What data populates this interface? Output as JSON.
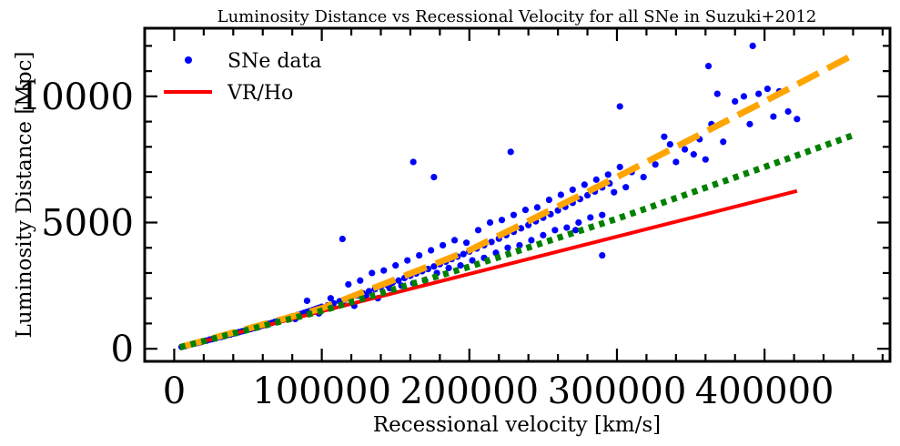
{
  "chart_data": {
    "type": "scatter",
    "title": "Luminosity Distance vs Recessional Velocity for all SNe in Suzuki+2012",
    "xlabel": "Recessional velocity [km/s]",
    "ylabel": "Luminosity Distance [Mpc]",
    "xlim": [
      -20000,
      485000
    ],
    "ylim": [
      -500,
      12700
    ],
    "xticks": [
      0,
      100000,
      200000,
      300000,
      400000
    ],
    "xtick_labels": [
      "0",
      "100000",
      "200000",
      "300000",
      "400000"
    ],
    "yticks": [
      0,
      5000,
      10000
    ],
    "ytick_labels": [
      "0",
      "5000",
      "10000"
    ],
    "grid": false,
    "legend_position": "top-left",
    "legend": [
      {
        "label": "SNe data",
        "kind": "marker",
        "color": "#0000ff"
      },
      {
        "label": "VR/Ho",
        "kind": "line",
        "color": "#ff0000"
      }
    ],
    "series": [
      {
        "name": "SNe data",
        "kind": "scatter",
        "color": "#0000ff",
        "points": [
          [
            5000,
            70
          ],
          [
            8000,
            110
          ],
          [
            10000,
            150
          ],
          [
            12000,
            180
          ],
          [
            14000,
            210
          ],
          [
            16000,
            230
          ],
          [
            18000,
            260
          ],
          [
            20000,
            300
          ],
          [
            22000,
            320
          ],
          [
            24000,
            360
          ],
          [
            26000,
            380
          ],
          [
            28000,
            410
          ],
          [
            30000,
            450
          ],
          [
            32000,
            470
          ],
          [
            34000,
            500
          ],
          [
            36000,
            540
          ],
          [
            38000,
            560
          ],
          [
            40000,
            600
          ],
          [
            42000,
            620
          ],
          [
            44000,
            660
          ],
          [
            46000,
            690
          ],
          [
            48000,
            720
          ],
          [
            50000,
            760
          ],
          [
            52000,
            780
          ],
          [
            54000,
            820
          ],
          [
            56000,
            850
          ],
          [
            58000,
            880
          ],
          [
            60000,
            920
          ],
          [
            62000,
            950
          ],
          [
            64000,
            990
          ],
          [
            66000,
            1020
          ],
          [
            68000,
            1060
          ],
          [
            70000,
            1090
          ],
          [
            72000,
            1130
          ],
          [
            74000,
            1160
          ],
          [
            76000,
            1200
          ],
          [
            78000,
            1240
          ],
          [
            80000,
            1280
          ],
          [
            82000,
            1300
          ],
          [
            84000,
            1350
          ],
          [
            86000,
            1380
          ],
          [
            88000,
            1420
          ],
          [
            90000,
            1460
          ],
          [
            92000,
            1500
          ],
          [
            94000,
            1540
          ],
          [
            96000,
            1580
          ],
          [
            98000,
            1620
          ],
          [
            100000,
            1660
          ],
          [
            104000,
            1720
          ],
          [
            108000,
            1800
          ],
          [
            112000,
            1880
          ],
          [
            116000,
            1950
          ],
          [
            120000,
            2030
          ],
          [
            124000,
            2110
          ],
          [
            128000,
            2190
          ],
          [
            132000,
            2280
          ],
          [
            136000,
            2360
          ],
          [
            140000,
            2450
          ],
          [
            144000,
            2530
          ],
          [
            148000,
            2620
          ],
          [
            152000,
            2700
          ],
          [
            156000,
            2800
          ],
          [
            160000,
            2890
          ],
          [
            164000,
            2980
          ],
          [
            168000,
            3070
          ],
          [
            172000,
            3160
          ],
          [
            176000,
            3260
          ],
          [
            180000,
            3350
          ],
          [
            184000,
            3450
          ],
          [
            188000,
            3550
          ],
          [
            192000,
            3650
          ],
          [
            196000,
            3750
          ],
          [
            200000,
            3850
          ],
          [
            205000,
            3970
          ],
          [
            210000,
            4100
          ],
          [
            215000,
            4230
          ],
          [
            220000,
            4360
          ],
          [
            225000,
            4500
          ],
          [
            230000,
            4630
          ],
          [
            235000,
            4770
          ],
          [
            240000,
            4900
          ],
          [
            245000,
            5050
          ],
          [
            250000,
            5190
          ],
          [
            255000,
            5330
          ],
          [
            260000,
            5480
          ],
          [
            265000,
            5620
          ],
          [
            270000,
            5780
          ],
          [
            275000,
            5930
          ],
          [
            280000,
            6080
          ],
          [
            285000,
            6230
          ],
          [
            290000,
            6390
          ],
          [
            295000,
            6550
          ],
          [
            82000,
            1180
          ],
          [
            90000,
            1900
          ],
          [
            98000,
            1400
          ],
          [
            106000,
            2000
          ],
          [
            114000,
            1850
          ],
          [
            118000,
            2550
          ],
          [
            122000,
            1700
          ],
          [
            126000,
            2700
          ],
          [
            130000,
            2100
          ],
          [
            134000,
            3000
          ],
          [
            138000,
            2000
          ],
          [
            142000,
            3100
          ],
          [
            146000,
            2400
          ],
          [
            150000,
            3300
          ],
          [
            154000,
            2500
          ],
          [
            158000,
            3500
          ],
          [
            162000,
            2600
          ],
          [
            166000,
            3700
          ],
          [
            170000,
            2700
          ],
          [
            174000,
            3900
          ],
          [
            178000,
            3000
          ],
          [
            182000,
            4100
          ],
          [
            186000,
            3200
          ],
          [
            190000,
            4300
          ],
          [
            194000,
            3300
          ],
          [
            198000,
            4200
          ],
          [
            202000,
            3500
          ],
          [
            206000,
            4700
          ],
          [
            210000,
            3600
          ],
          [
            214000,
            5000
          ],
          [
            218000,
            3800
          ],
          [
            222000,
            5100
          ],
          [
            226000,
            4000
          ],
          [
            230000,
            5300
          ],
          [
            234000,
            4100
          ],
          [
            238000,
            5500
          ],
          [
            242000,
            4300
          ],
          [
            246000,
            5600
          ],
          [
            250000,
            4500
          ],
          [
            254000,
            5900
          ],
          [
            258000,
            4700
          ],
          [
            262000,
            6100
          ],
          [
            266000,
            4800
          ],
          [
            270000,
            6300
          ],
          [
            274000,
            5000
          ],
          [
            278000,
            6500
          ],
          [
            282000,
            5200
          ],
          [
            286000,
            6700
          ],
          [
            290000,
            5300
          ],
          [
            294000,
            6900
          ],
          [
            298000,
            6200
          ],
          [
            302000,
            7200
          ],
          [
            306000,
            6400
          ],
          [
            310000,
            7000
          ],
          [
            318000,
            6800
          ],
          [
            326000,
            7300
          ],
          [
            332000,
            8400
          ],
          [
            336000,
            8100
          ],
          [
            340000,
            7400
          ],
          [
            346000,
            7900
          ],
          [
            352000,
            7700
          ],
          [
            356000,
            8300
          ],
          [
            360000,
            7500
          ],
          [
            364000,
            8900
          ],
          [
            368000,
            10100
          ],
          [
            372000,
            8200
          ],
          [
            380000,
            9800
          ],
          [
            386000,
            10000
          ],
          [
            390000,
            8900
          ],
          [
            396000,
            10100
          ],
          [
            402000,
            10300
          ],
          [
            406000,
            9200
          ],
          [
            410000,
            10200
          ],
          [
            416000,
            9400
          ],
          [
            422000,
            9100
          ],
          [
            114000,
            4350
          ],
          [
            162000,
            7400
          ],
          [
            176000,
            6800
          ],
          [
            228000,
            7800
          ],
          [
            302000,
            9600
          ],
          [
            362000,
            11200
          ],
          [
            392000,
            12000
          ],
          [
            290000,
            3700
          ],
          [
            272000,
            4700
          ],
          [
            140000,
            2500
          ]
        ]
      },
      {
        "name": "VR/Ho",
        "kind": "line",
        "color": "#ff0000",
        "dash": "solid",
        "points": [
          [
            4000,
            60
          ],
          [
            422000,
            6250
          ]
        ]
      },
      {
        "name": "",
        "kind": "line",
        "color": "#ffa500",
        "dash": "dashed",
        "points": [
          [
            4000,
            60
          ],
          [
            100000,
            1600
          ],
          [
            200000,
            3900
          ],
          [
            300000,
            6800
          ],
          [
            400000,
            9800
          ],
          [
            462000,
            11700
          ]
        ]
      },
      {
        "name": "",
        "kind": "line",
        "color": "#008000",
        "dash": "dotted",
        "points": [
          [
            4000,
            60
          ],
          [
            100000,
            1500
          ],
          [
            200000,
            3250
          ],
          [
            300000,
            5150
          ],
          [
            400000,
            7200
          ],
          [
            462000,
            8500
          ]
        ]
      }
    ]
  }
}
